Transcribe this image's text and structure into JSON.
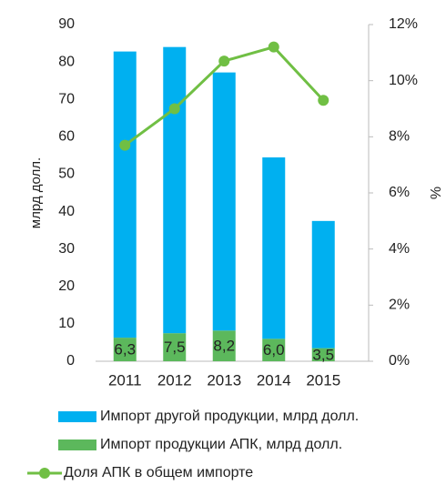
{
  "chart_data": {
    "type": "bar",
    "categories": [
      "2011",
      "2012",
      "2013",
      "2014",
      "2015"
    ],
    "ylabel": "млрд долл.",
    "y2label": "%",
    "ylim": [
      0,
      90
    ],
    "yticks": [
      0,
      10,
      20,
      30,
      40,
      50,
      60,
      70,
      80,
      90
    ],
    "y2lim": [
      0,
      12
    ],
    "y2ticks": [
      {
        "value": 0,
        "label": "0%"
      },
      {
        "value": 2,
        "label": "2%"
      },
      {
        "value": 4,
        "label": "4%"
      },
      {
        "value": 6,
        "label": "6%"
      },
      {
        "value": 8,
        "label": "8%"
      },
      {
        "value": 10,
        "label": "10%"
      },
      {
        "value": 12,
        "label": "12%"
      }
    ],
    "stacked": true,
    "series": [
      {
        "name": "Импорт другой продукции, млрд долл.",
        "color": "#00b0f0",
        "values": [
          76.5,
          76.5,
          69,
          48.5,
          34
        ]
      },
      {
        "name": "Импорт продукции АПК, млрд долл.",
        "color": "#5cb85c",
        "values": [
          6.3,
          7.5,
          8.2,
          6.0,
          3.5
        ],
        "value_labels": [
          "6,3",
          "7,5",
          "8,2",
          "6,0",
          "3,5"
        ]
      },
      {
        "name": "Доля АПК в общем импорте",
        "color": "#70bf44",
        "type": "line",
        "axis": "y2",
        "values": [
          7.7,
          9.0,
          10.7,
          11.2,
          9.3
        ]
      }
    ]
  }
}
